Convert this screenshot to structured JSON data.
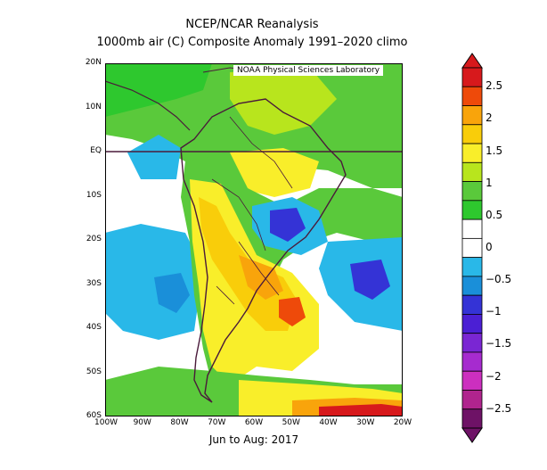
{
  "title_line1": "NCEP/NCAR Reanalysis",
  "title_line2": "1000mb air (C) Composite Anomaly 1991–2020 climo",
  "credit": "NOAA Physical Sciences Laboratory",
  "period": "Jun to Aug: 2017",
  "lat_ticks": [
    "20N",
    "10N",
    "EQ",
    "10S",
    "20S",
    "30S",
    "40S",
    "50S",
    "60S"
  ],
  "lon_ticks": [
    "100W",
    "90W",
    "80W",
    "70W",
    "60W",
    "50W",
    "40W",
    "30W",
    "20W"
  ],
  "colorbar": {
    "labels": [
      "2.5",
      "2",
      "1.5",
      "1",
      "0.5",
      "0",
      "−0.5",
      "−1",
      "−1.5",
      "−2",
      "−2.5"
    ],
    "colors": [
      "#d7191c",
      "#ee4a0a",
      "#f9a40b",
      "#f9cd0a",
      "#f9ee2a",
      "#b8e51d",
      "#5ac93b",
      "#2ec82e",
      "#ffffff",
      "#ffffff",
      "#29b8e8",
      "#1a8fd9",
      "#3433d6",
      "#4b1fd4",
      "#7a26d3",
      "#a62bcf",
      "#cc2fbf",
      "#b0248e",
      "#6e1266"
    ],
    "colors_comment": ""
  }
}
